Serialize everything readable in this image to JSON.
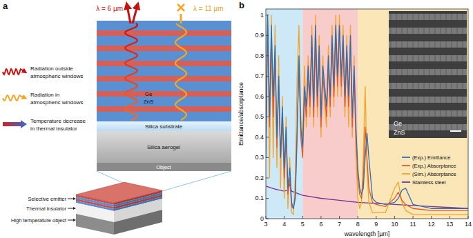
{
  "panel_a": {
    "label": "a",
    "wave_labels": [
      "λ = 6 µm",
      "λ = 11 µm"
    ],
    "key_items": [
      {
        "lines": [
          "Radiation outside",
          "atmospheric windows"
        ]
      },
      {
        "lines": [
          "Radiation in",
          "atmospheric windows"
        ]
      },
      {
        "lines": [
          "Temperature decrease",
          "in thermal insulator"
        ]
      }
    ],
    "stack": {
      "ge": "Ge",
      "zns": "ZnS",
      "substrate": "Silica substrate",
      "aerogel": "Silica aerogel",
      "object": "Object"
    },
    "block_labels": [
      "Selective emitter",
      "Thermal insulator",
      "High temperature object"
    ]
  },
  "chart_data": {
    "type": "line",
    "panel_label": "b",
    "x_label": "wavelength [µm]",
    "y_label": "Emittance/absorptance",
    "xlim": [
      3,
      14
    ],
    "ylim": [
      0,
      1.03
    ],
    "xticks": [
      3,
      4,
      5,
      6,
      7,
      8,
      9,
      10,
      11,
      12,
      13,
      14
    ],
    "yticks": [
      0,
      0.1,
      0.2,
      0.3,
      0.4,
      0.5,
      0.6,
      0.7,
      0.8,
      0.9,
      1
    ],
    "legend": "lower right",
    "regions": [
      {
        "from": 3,
        "to": 5,
        "color": "#cde8f6"
      },
      {
        "from": 5,
        "to": 8,
        "color": "#f7cccb"
      },
      {
        "from": 8,
        "to": 14,
        "color": "#fbe6b8"
      }
    ],
    "inset": {
      "labels": [
        "Ge",
        "ZnS"
      ]
    },
    "series": [
      {
        "name": "(Exp.) Emittance",
        "color": "#2f6fb0",
        "x": [
          3,
          3.1,
          3.2,
          3.3,
          3.4,
          3.5,
          3.6,
          3.7,
          3.8,
          3.9,
          4,
          4.1,
          4.2,
          4.3,
          4.4,
          4.5,
          4.6,
          4.7,
          4.8,
          4.9,
          5,
          5.1,
          5.2,
          5.3,
          5.4,
          5.5,
          5.6,
          5.7,
          5.8,
          5.9,
          6,
          6.1,
          6.2,
          6.3,
          6.4,
          6.5,
          6.6,
          6.7,
          6.8,
          6.9,
          7,
          7.1,
          7.2,
          7.3,
          7.4,
          7.5,
          7.6,
          7.7,
          7.8,
          7.9,
          8,
          8.1,
          8.2,
          8.3,
          8.4,
          8.5,
          8.6,
          8.8,
          9,
          9.5,
          10,
          10.2,
          10.4,
          10.6,
          11,
          12,
          13,
          14
        ],
        "values": [
          0.3,
          1.0,
          0.5,
          0.95,
          0.6,
          0.85,
          0.4,
          0.7,
          0.3,
          0.55,
          0.25,
          0.45,
          0.15,
          0.25,
          0.08,
          0.05,
          0.1,
          0.4,
          0.8,
          0.45,
          0.35,
          0.65,
          0.55,
          0.75,
          0.6,
          0.9,
          0.55,
          0.95,
          0.6,
          0.85,
          0.5,
          0.75,
          0.65,
          0.55,
          0.8,
          0.6,
          0.9,
          0.65,
          0.95,
          0.7,
          0.95,
          0.7,
          0.9,
          0.6,
          0.85,
          0.6,
          0.9,
          0.5,
          0.75,
          0.45,
          0.25,
          0.15,
          0.12,
          0.15,
          0.3,
          0.42,
          0.3,
          0.1,
          0.08,
          0.07,
          0.08,
          0.1,
          0.14,
          0.15,
          0.07,
          0.05,
          0.05,
          0.05
        ]
      },
      {
        "name": "(Exp.) Absorptance",
        "color": "#e4592a",
        "x": [
          3,
          3.1,
          3.2,
          3.3,
          3.4,
          3.5,
          3.6,
          3.7,
          3.8,
          3.9,
          4,
          4.1,
          4.2,
          4.3,
          4.4,
          4.5,
          4.6,
          4.7,
          4.8,
          4.9,
          5,
          5.1,
          5.2,
          5.3,
          5.4,
          5.5,
          5.6,
          5.7,
          5.8,
          5.9,
          6,
          6.1,
          6.2,
          6.3,
          6.4,
          6.5,
          6.6,
          6.7,
          6.8,
          6.9,
          7,
          7.1,
          7.2,
          7.3,
          7.4,
          7.5,
          7.6,
          7.7,
          7.8,
          7.9,
          8,
          8.1,
          8.2,
          8.3,
          8.4,
          8.5,
          8.6,
          8.8,
          9,
          9.5,
          10,
          10.2,
          10.4,
          10.6,
          11,
          12,
          13,
          14
        ],
        "values": [
          0.35,
          0.95,
          0.45,
          0.9,
          0.5,
          0.8,
          0.35,
          0.65,
          0.3,
          0.5,
          0.2,
          0.4,
          0.12,
          0.2,
          0.06,
          0.05,
          0.12,
          0.45,
          0.75,
          0.4,
          0.3,
          0.6,
          0.5,
          0.7,
          0.55,
          0.85,
          0.5,
          0.9,
          0.55,
          0.8,
          0.45,
          0.7,
          0.6,
          0.5,
          0.75,
          0.55,
          0.85,
          0.6,
          0.9,
          0.65,
          0.92,
          0.65,
          0.85,
          0.55,
          0.8,
          0.55,
          0.85,
          0.45,
          0.7,
          0.4,
          0.2,
          0.12,
          0.1,
          0.2,
          0.45,
          0.3,
          0.15,
          0.08,
          0.07,
          0.06,
          0.1,
          0.13,
          0.09,
          0.07,
          0.05,
          0.04,
          0.04,
          0.04
        ]
      },
      {
        "name": "(Sim.) Absorptance",
        "color": "#f2a42a",
        "x": [
          3,
          3.1,
          3.2,
          3.3,
          3.4,
          3.5,
          3.6,
          3.7,
          3.8,
          3.9,
          4,
          4.1,
          4.2,
          4.3,
          4.4,
          4.5,
          4.6,
          4.7,
          4.8,
          4.9,
          5,
          5.1,
          5.2,
          5.3,
          5.4,
          5.5,
          5.6,
          5.7,
          5.8,
          5.9,
          6,
          6.1,
          6.2,
          6.3,
          6.4,
          6.5,
          6.6,
          6.7,
          6.8,
          6.9,
          7,
          7.1,
          7.2,
          7.3,
          7.4,
          7.5,
          7.6,
          7.7,
          7.8,
          7.9,
          8,
          8.1,
          8.2,
          8.3,
          8.4,
          8.5,
          8.6,
          8.8,
          9,
          9.5,
          10,
          10.2,
          10.4,
          10.6,
          11,
          12,
          13,
          14
        ],
        "values": [
          0.6,
          0.98,
          0.2,
          1.0,
          0.3,
          0.95,
          0.25,
          0.8,
          0.15,
          0.6,
          0.1,
          0.5,
          0.05,
          0.3,
          0.03,
          0.02,
          0.2,
          0.7,
          0.95,
          0.5,
          0.4,
          0.75,
          0.45,
          0.8,
          0.5,
          0.95,
          0.45,
          1.0,
          0.5,
          0.9,
          0.4,
          0.8,
          0.55,
          0.45,
          0.85,
          0.5,
          0.95,
          0.55,
          1.0,
          0.6,
          1.0,
          0.6,
          0.95,
          0.5,
          0.9,
          0.45,
          0.95,
          0.4,
          0.8,
          0.3,
          0.1,
          0.05,
          0.08,
          0.3,
          0.65,
          0.25,
          0.08,
          0.03,
          0.03,
          0.03,
          0.15,
          0.18,
          0.08,
          0.04,
          0.02,
          0.02,
          0.02,
          0.02
        ]
      },
      {
        "name": "Stainless steel",
        "color": "#7b3294",
        "x": [
          3,
          3.5,
          4,
          4.2,
          4.3,
          4.4,
          5,
          6,
          7,
          8,
          9,
          10,
          11,
          12,
          13,
          14
        ],
        "values": [
          0.16,
          0.145,
          0.135,
          0.14,
          0.17,
          0.135,
          0.115,
          0.1,
          0.09,
          0.08,
          0.075,
          0.07,
          0.065,
          0.06,
          0.055,
          0.05
        ]
      }
    ]
  }
}
